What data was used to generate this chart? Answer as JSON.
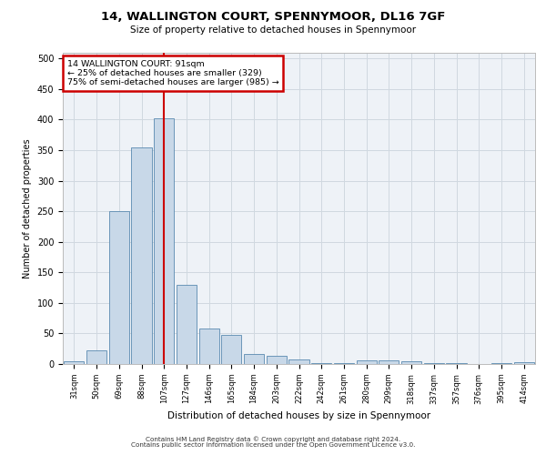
{
  "title": "14, WALLINGTON COURT, SPENNYMOOR, DL16 7GF",
  "subtitle": "Size of property relative to detached houses in Spennymoor",
  "xlabel": "Distribution of detached houses by size in Spennymoor",
  "ylabel": "Number of detached properties",
  "categories": [
    "31sqm",
    "50sqm",
    "69sqm",
    "88sqm",
    "107sqm",
    "127sqm",
    "146sqm",
    "165sqm",
    "184sqm",
    "203sqm",
    "222sqm",
    "242sqm",
    "261sqm",
    "280sqm",
    "299sqm",
    "318sqm",
    "337sqm",
    "357sqm",
    "376sqm",
    "395sqm",
    "414sqm"
  ],
  "values": [
    5,
    22,
    250,
    355,
    402,
    130,
    58,
    48,
    17,
    14,
    7,
    1,
    1,
    6,
    6,
    5,
    1,
    1,
    0,
    1,
    3
  ],
  "bar_color": "#c8d8e8",
  "bar_edge_color": "#5a8ab0",
  "vline_x": 4,
  "annotation_text": "14 WALLINGTON COURT: 91sqm\n← 25% of detached houses are smaller (329)\n75% of semi-detached houses are larger (985) →",
  "annotation_box_color": "#ffffff",
  "annotation_box_edge_color": "#cc0000",
  "vline_color": "#cc0000",
  "grid_color": "#d0d8e0",
  "background_color": "#eef2f7",
  "ylim": [
    0,
    510
  ],
  "yticks": [
    0,
    50,
    100,
    150,
    200,
    250,
    300,
    350,
    400,
    450,
    500
  ],
  "footer_line1": "Contains HM Land Registry data © Crown copyright and database right 2024.",
  "footer_line2": "Contains public sector information licensed under the Open Government Licence v3.0."
}
